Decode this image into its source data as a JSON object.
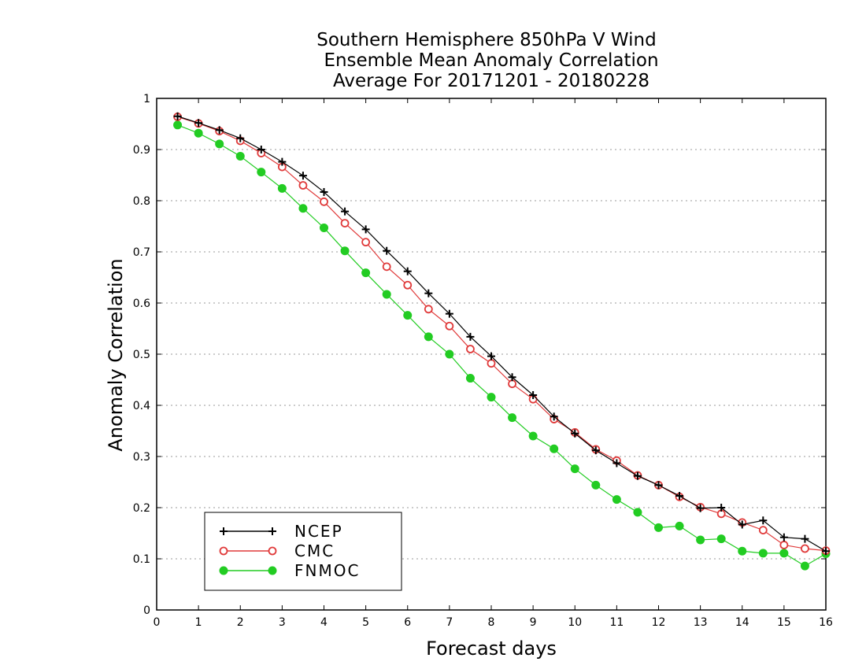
{
  "chart_data": {
    "type": "line",
    "title_lines": [
      "Southern Hemisphere 850hPa V Wind",
      "Ensemble Mean Anomaly Correlation",
      "Average For 20171201 - 20180228"
    ],
    "xlabel": "Forecast days",
    "ylabel": "Anomaly Correlation",
    "xlim": [
      0,
      16
    ],
    "ylim": [
      0,
      1
    ],
    "x_ticks": [
      "0",
      "1",
      "2",
      "3",
      "4",
      "5",
      "6",
      "7",
      "8",
      "9",
      "10",
      "11",
      "12",
      "13",
      "14",
      "15",
      "16"
    ],
    "y_ticks": [
      "0",
      "0.1",
      "0.2",
      "0.3",
      "0.4",
      "0.5",
      "0.6",
      "0.7",
      "0.8",
      "0.9",
      "1"
    ],
    "grid": "horizontal dotted",
    "legend_position": "bottom-left",
    "x": [
      0.5,
      1,
      1.5,
      2,
      2.5,
      3,
      3.5,
      4,
      4.5,
      5,
      5.5,
      6,
      6.5,
      7,
      7.5,
      8,
      8.5,
      9,
      9.5,
      10,
      10.5,
      11,
      11.5,
      12,
      12.5,
      13,
      13.5,
      14,
      14.5,
      15,
      15.5,
      16
    ],
    "series": [
      {
        "name": "NCEP",
        "color": "#000000",
        "marker": "plus",
        "values": [
          0.965,
          0.952,
          0.938,
          0.922,
          0.9,
          0.876,
          0.849,
          0.817,
          0.779,
          0.744,
          0.702,
          0.662,
          0.619,
          0.579,
          0.534,
          0.496,
          0.455,
          0.42,
          0.378,
          0.345,
          0.312,
          0.287,
          0.262,
          0.244,
          0.223,
          0.199,
          0.2,
          0.167,
          0.175,
          0.142,
          0.139,
          0.115
        ]
      },
      {
        "name": "CMC",
        "color": "#e03a3a",
        "marker": "open-circle",
        "values": [
          0.964,
          0.951,
          0.936,
          0.917,
          0.893,
          0.866,
          0.83,
          0.798,
          0.756,
          0.719,
          0.671,
          0.635,
          0.588,
          0.555,
          0.51,
          0.482,
          0.442,
          0.412,
          0.373,
          0.347,
          0.314,
          0.292,
          0.263,
          0.244,
          0.221,
          0.201,
          0.188,
          0.171,
          0.156,
          0.127,
          0.12,
          0.116
        ]
      },
      {
        "name": "FNMOC",
        "color": "#22cc22",
        "marker": "filled-circle",
        "values": [
          0.948,
          0.932,
          0.911,
          0.887,
          0.856,
          0.824,
          0.785,
          0.747,
          0.702,
          0.659,
          0.617,
          0.576,
          0.534,
          0.5,
          0.453,
          0.416,
          0.376,
          0.34,
          0.315,
          0.276,
          0.244,
          0.216,
          0.191,
          0.161,
          0.164,
          0.137,
          0.139,
          0.115,
          0.111,
          0.111,
          0.086,
          0.11
        ]
      }
    ]
  }
}
